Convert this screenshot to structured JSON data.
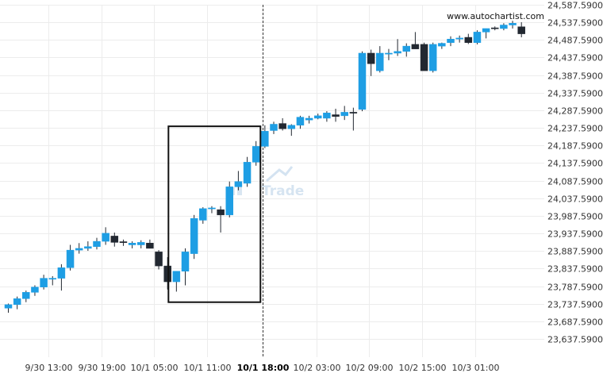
{
  "source_label": "www.autochartist.com",
  "watermark": {
    "text": "Trade"
  },
  "colors": {
    "bull": "#1e9ee4",
    "bear": "#222831",
    "wick": "#222831",
    "box": "#111111",
    "grid": "#ececec"
  },
  "chart_data": {
    "type": "candlestick",
    "ylim": [
      23637.59,
      24587.59
    ],
    "y_ticks": [
      "24,587.5900",
      "24,537.5900",
      "24,487.5900",
      "24,437.5900",
      "24,387.5900",
      "24,337.5900",
      "24,287.5900",
      "24,237.5900",
      "24,187.5900",
      "24,137.5900",
      "24,087.5900",
      "24,037.5900",
      "23,987.5900",
      "23,937.5900",
      "23,887.5900",
      "23,837.5900",
      "23,787.5900",
      "23,737.5900",
      "23,687.5900",
      "23,637.5900"
    ],
    "x_ticks": [
      {
        "label": "9/30 13:00",
        "index": 4.5,
        "bold": false
      },
      {
        "label": "9/30 19:00",
        "index": 10.5,
        "bold": false
      },
      {
        "label": "10/1 05:00",
        "index": 16.5,
        "bold": false
      },
      {
        "label": "10/1 11:00",
        "index": 22.5,
        "bold": false
      },
      {
        "label": "10/1 18:00",
        "index": 28.7,
        "bold": true
      },
      {
        "label": "10/2 03:00",
        "index": 34.8,
        "bold": false
      },
      {
        "label": "10/2 09:00",
        "index": 40.8,
        "bold": false
      },
      {
        "label": "10/2 15:00",
        "index": 46.8,
        "bold": false
      },
      {
        "label": "10/3 01:00",
        "index": 52.8,
        "bold": false
      }
    ],
    "divider_index": 28.7,
    "pattern_box": {
      "start_index": 18.1,
      "end_index": 28.5,
      "high": 24242,
      "low": 23742
    },
    "candles": [
      {
        "o": 23725,
        "h": 23738,
        "l": 23712,
        "c": 23735
      },
      {
        "o": 23735,
        "h": 23758,
        "l": 23722,
        "c": 23752
      },
      {
        "o": 23752,
        "h": 23775,
        "l": 23742,
        "c": 23770
      },
      {
        "o": 23770,
        "h": 23790,
        "l": 23760,
        "c": 23785
      },
      {
        "o": 23785,
        "h": 23820,
        "l": 23778,
        "c": 23810
      },
      {
        "o": 23810,
        "h": 23816,
        "l": 23790,
        "c": 23810
      },
      {
        "o": 23810,
        "h": 23850,
        "l": 23775,
        "c": 23840
      },
      {
        "o": 23840,
        "h": 23905,
        "l": 23832,
        "c": 23890
      },
      {
        "o": 23890,
        "h": 23910,
        "l": 23880,
        "c": 23895
      },
      {
        "o": 23895,
        "h": 23915,
        "l": 23888,
        "c": 23900
      },
      {
        "o": 23900,
        "h": 23925,
        "l": 23892,
        "c": 23915
      },
      {
        "o": 23915,
        "h": 23955,
        "l": 23905,
        "c": 23938
      },
      {
        "o": 23930,
        "h": 23940,
        "l": 23900,
        "c": 23912
      },
      {
        "o": 23914,
        "h": 23920,
        "l": 23902,
        "c": 23912
      },
      {
        "o": 23905,
        "h": 23915,
        "l": 23895,
        "c": 23910
      },
      {
        "o": 23905,
        "h": 23918,
        "l": 23895,
        "c": 23912
      },
      {
        "o": 23910,
        "h": 23920,
        "l": 23895,
        "c": 23895
      },
      {
        "o": 23885,
        "h": 23890,
        "l": 23835,
        "c": 23845
      },
      {
        "o": 23845,
        "h": 23870,
        "l": 23778,
        "c": 23800
      },
      {
        "o": 23800,
        "h": 23830,
        "l": 23772,
        "c": 23830
      },
      {
        "o": 23830,
        "h": 23895,
        "l": 23790,
        "c": 23885
      },
      {
        "o": 23880,
        "h": 23990,
        "l": 23865,
        "c": 23980
      },
      {
        "o": 23975,
        "h": 24012,
        "l": 23965,
        "c": 24008
      },
      {
        "o": 24008,
        "h": 24015,
        "l": 23995,
        "c": 24010
      },
      {
        "o": 24005,
        "h": 24015,
        "l": 23940,
        "c": 23990
      },
      {
        "o": 23990,
        "h": 24085,
        "l": 23983,
        "c": 24070
      },
      {
        "o": 24070,
        "h": 24115,
        "l": 24060,
        "c": 24085
      },
      {
        "o": 24080,
        "h": 24155,
        "l": 24070,
        "c": 24140
      },
      {
        "o": 24140,
        "h": 24200,
        "l": 24130,
        "c": 24185
      },
      {
        "o": 24185,
        "h": 24245,
        "l": 24180,
        "c": 24228
      },
      {
        "o": 24230,
        "h": 24255,
        "l": 24220,
        "c": 24248
      },
      {
        "o": 24250,
        "h": 24265,
        "l": 24230,
        "c": 24235
      },
      {
        "o": 24235,
        "h": 24248,
        "l": 24215,
        "c": 24245
      },
      {
        "o": 24245,
        "h": 24272,
        "l": 24235,
        "c": 24268
      },
      {
        "o": 24260,
        "h": 24272,
        "l": 24250,
        "c": 24265
      },
      {
        "o": 24265,
        "h": 24278,
        "l": 24262,
        "c": 24272
      },
      {
        "o": 24265,
        "h": 24285,
        "l": 24255,
        "c": 24280
      },
      {
        "o": 24275,
        "h": 24292,
        "l": 24255,
        "c": 24270
      },
      {
        "o": 24272,
        "h": 24300,
        "l": 24260,
        "c": 24282
      },
      {
        "o": 24282,
        "h": 24295,
        "l": 24230,
        "c": 24280
      },
      {
        "o": 24290,
        "h": 24455,
        "l": 24285,
        "c": 24450
      },
      {
        "o": 24450,
        "h": 24460,
        "l": 24385,
        "c": 24420
      },
      {
        "o": 24400,
        "h": 24470,
        "l": 24395,
        "c": 24450
      },
      {
        "o": 24450,
        "h": 24462,
        "l": 24430,
        "c": 24450
      },
      {
        "o": 24450,
        "h": 24490,
        "l": 24442,
        "c": 24455
      },
      {
        "o": 24455,
        "h": 24478,
        "l": 24440,
        "c": 24470
      },
      {
        "o": 24475,
        "h": 24510,
        "l": 24465,
        "c": 24462
      },
      {
        "o": 24475,
        "h": 24480,
        "l": 24400,
        "c": 24400
      },
      {
        "o": 24400,
        "h": 24480,
        "l": 24395,
        "c": 24475
      },
      {
        "o": 24470,
        "h": 24480,
        "l": 24462,
        "c": 24478
      },
      {
        "o": 24480,
        "h": 24498,
        "l": 24470,
        "c": 24490
      },
      {
        "o": 24490,
        "h": 24500,
        "l": 24480,
        "c": 24493
      },
      {
        "o": 24495,
        "h": 24505,
        "l": 24476,
        "c": 24480
      },
      {
        "o": 24480,
        "h": 24515,
        "l": 24475,
        "c": 24510
      },
      {
        "o": 24510,
        "h": 24520,
        "l": 24492,
        "c": 24520
      },
      {
        "o": 24522,
        "h": 24526,
        "l": 24515,
        "c": 24520
      },
      {
        "o": 24520,
        "h": 24535,
        "l": 24515,
        "c": 24530
      },
      {
        "o": 24530,
        "h": 24542,
        "l": 24520,
        "c": 24535
      },
      {
        "o": 24525,
        "h": 24538,
        "l": 24495,
        "c": 24505
      }
    ]
  }
}
